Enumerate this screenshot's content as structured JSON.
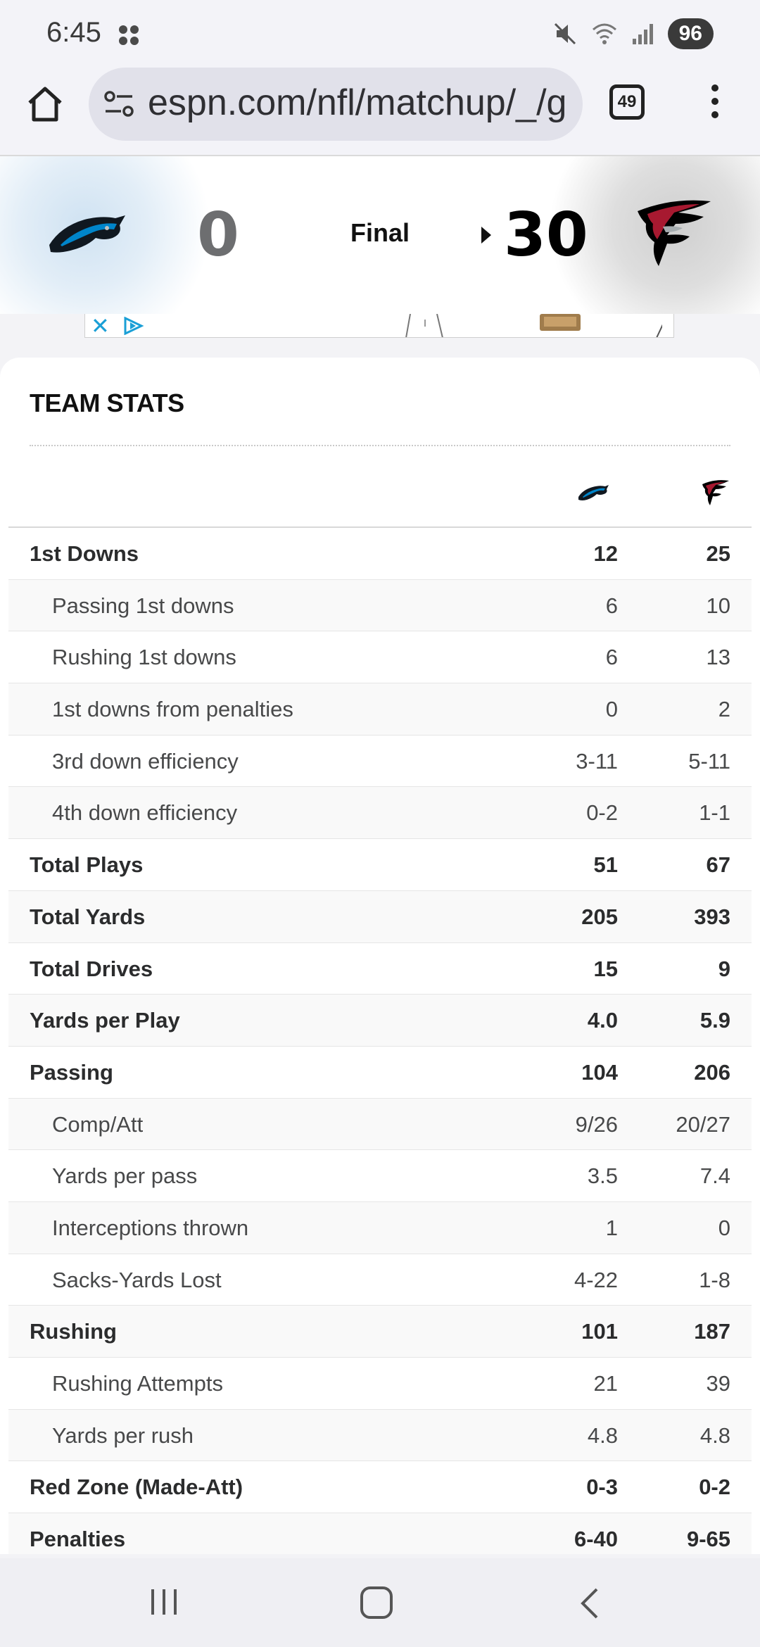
{
  "status_bar": {
    "time": "6:45",
    "battery": "96",
    "icons": [
      "app-dots-icon",
      "mute-icon",
      "wifi-icon",
      "signal-icon"
    ]
  },
  "browser": {
    "url": "espn.com/nfl/matchup/_/g",
    "tab_count": "49",
    "icons": [
      "home-icon",
      "site-info-icon",
      "tabs-icon",
      "more-menu-icon"
    ]
  },
  "scoreboard": {
    "away_team_logo": "panthers-logo",
    "home_team_logo": "falcons-logo",
    "away_score": "0",
    "home_score": "30",
    "status": "Final",
    "colors": {
      "away_accent": "#0085ca",
      "home_accent": "#a71930"
    }
  },
  "ad": {
    "close": "✕"
  },
  "team_stats": {
    "title": "TEAM STATS",
    "rows": [
      {
        "label": "1st Downs",
        "away": "12",
        "home": "25",
        "level": "main"
      },
      {
        "label": "Passing 1st downs",
        "away": "6",
        "home": "10",
        "level": "sub"
      },
      {
        "label": "Rushing 1st downs",
        "away": "6",
        "home": "13",
        "level": "sub"
      },
      {
        "label": "1st downs from penalties",
        "away": "0",
        "home": "2",
        "level": "sub"
      },
      {
        "label": "3rd down efficiency",
        "away": "3-11",
        "home": "5-11",
        "level": "sub"
      },
      {
        "label": "4th down efficiency",
        "away": "0-2",
        "home": "1-1",
        "level": "sub"
      },
      {
        "label": "Total Plays",
        "away": "51",
        "home": "67",
        "level": "main"
      },
      {
        "label": "Total Yards",
        "away": "205",
        "home": "393",
        "level": "main"
      },
      {
        "label": "Total Drives",
        "away": "15",
        "home": "9",
        "level": "main"
      },
      {
        "label": "Yards per Play",
        "away": "4.0",
        "home": "5.9",
        "level": "main"
      },
      {
        "label": "Passing",
        "away": "104",
        "home": "206",
        "level": "main"
      },
      {
        "label": "Comp/Att",
        "away": "9/26",
        "home": "20/27",
        "level": "sub"
      },
      {
        "label": "Yards per pass",
        "away": "3.5",
        "home": "7.4",
        "level": "sub"
      },
      {
        "label": "Interceptions thrown",
        "away": "1",
        "home": "0",
        "level": "sub"
      },
      {
        "label": "Sacks-Yards Lost",
        "away": "4-22",
        "home": "1-8",
        "level": "sub"
      },
      {
        "label": "Rushing",
        "away": "101",
        "home": "187",
        "level": "main"
      },
      {
        "label": "Rushing Attempts",
        "away": "21",
        "home": "39",
        "level": "sub"
      },
      {
        "label": "Yards per rush",
        "away": "4.8",
        "home": "4.8",
        "level": "sub"
      },
      {
        "label": "Red Zone (Made-Att)",
        "away": "0-3",
        "home": "0-2",
        "level": "main"
      },
      {
        "label": "Penalties",
        "away": "6-40",
        "home": "9-65",
        "level": "main"
      }
    ]
  },
  "nav_bar": {
    "icons": [
      "recent-apps-icon",
      "home-button-icon",
      "back-icon"
    ]
  }
}
